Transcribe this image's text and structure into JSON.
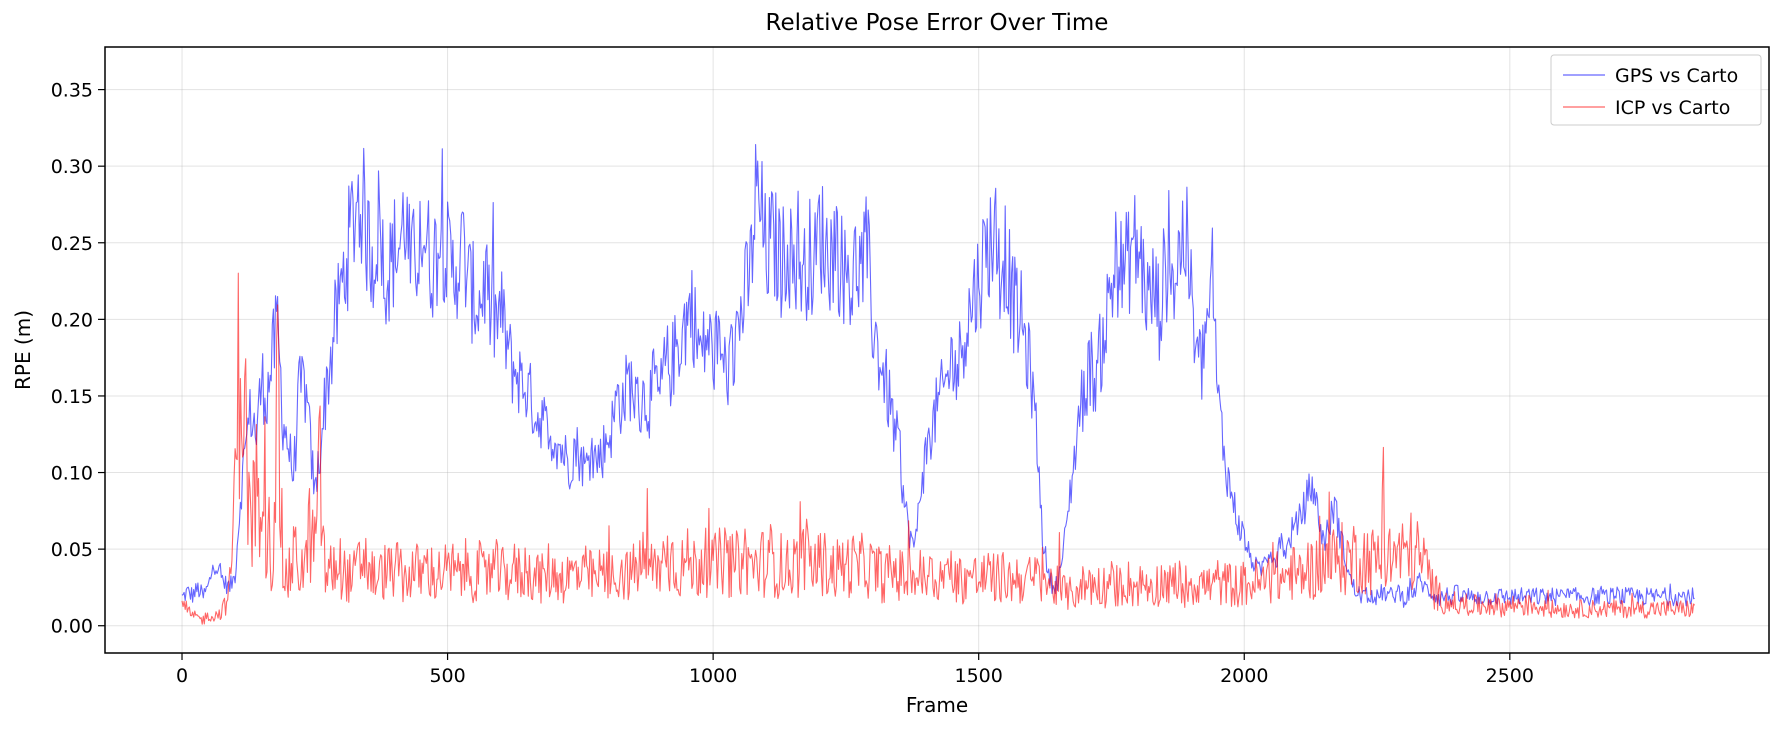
{
  "chart_data": {
    "type": "line",
    "title": "Relative Pose Error Over Time",
    "xlabel": "Frame",
    "ylabel": "RPE (m)",
    "xlim": [
      -145,
      2988
    ],
    "ylim": [
      -0.0178,
      0.3778
    ],
    "x_ticks": [
      0,
      500,
      1000,
      1500,
      2000,
      2500
    ],
    "y_ticks": [
      0.0,
      0.05,
      0.1,
      0.15,
      0.2,
      0.25,
      0.3,
      0.35
    ],
    "x_tick_labels": [
      "0",
      "500",
      "1000",
      "1500",
      "2000",
      "2500"
    ],
    "y_tick_labels": [
      "0.00",
      "0.05",
      "0.10",
      "0.15",
      "0.20",
      "0.25",
      "0.30",
      "0.35"
    ],
    "grid": true,
    "legend_position": "top-right",
    "frames": 2850,
    "series": [
      {
        "name": "GPS vs Carto",
        "color": "#0000ff",
        "opacity": 0.6,
        "x_step": 10,
        "values": [
          0.018,
          0.022,
          0.02,
          0.024,
          0.019,
          0.026,
          0.041,
          0.035,
          0.028,
          0.025,
          0.033,
          0.083,
          0.12,
          0.14,
          0.125,
          0.16,
          0.15,
          0.175,
          0.195,
          0.135,
          0.118,
          0.098,
          0.15,
          0.16,
          0.125,
          0.085,
          0.115,
          0.15,
          0.175,
          0.2,
          0.22,
          0.24,
          0.262,
          0.28,
          0.275,
          0.25,
          0.24,
          0.262,
          0.235,
          0.23,
          0.245,
          0.248,
          0.27,
          0.232,
          0.24,
          0.26,
          0.25,
          0.235,
          0.245,
          0.255,
          0.24,
          0.23,
          0.238,
          0.245,
          0.222,
          0.215,
          0.21,
          0.225,
          0.205,
          0.198,
          0.205,
          0.188,
          0.17,
          0.165,
          0.158,
          0.155,
          0.145,
          0.135,
          0.138,
          0.12,
          0.125,
          0.118,
          0.112,
          0.105,
          0.118,
          0.11,
          0.102,
          0.115,
          0.108,
          0.112,
          0.122,
          0.13,
          0.15,
          0.145,
          0.16,
          0.155,
          0.14,
          0.15,
          0.145,
          0.16,
          0.148,
          0.172,
          0.168,
          0.18,
          0.19,
          0.2,
          0.21,
          0.185,
          0.178,
          0.19,
          0.175,
          0.182,
          0.17,
          0.165,
          0.185,
          0.2,
          0.215,
          0.23,
          0.28,
          0.27,
          0.24,
          0.25,
          0.245,
          0.235,
          0.255,
          0.23,
          0.25,
          0.225,
          0.245,
          0.23,
          0.26,
          0.248,
          0.24,
          0.255,
          0.235,
          0.23,
          0.222,
          0.238,
          0.232,
          0.245,
          0.2,
          0.18,
          0.165,
          0.15,
          0.13,
          0.115,
          0.08,
          0.06,
          0.05,
          0.09,
          0.11,
          0.125,
          0.14,
          0.15,
          0.16,
          0.175,
          0.165,
          0.19,
          0.2,
          0.215,
          0.225,
          0.24,
          0.25,
          0.26,
          0.235,
          0.245,
          0.22,
          0.205,
          0.2,
          0.18,
          0.16,
          0.12,
          0.06,
          0.035,
          0.025,
          0.03,
          0.05,
          0.08,
          0.11,
          0.14,
          0.155,
          0.17,
          0.16,
          0.18,
          0.2,
          0.22,
          0.24,
          0.23,
          0.235,
          0.25,
          0.245,
          0.23,
          0.21,
          0.22,
          0.205,
          0.23,
          0.24,
          0.225,
          0.25,
          0.255,
          0.215,
          0.175,
          0.17,
          0.2,
          0.22,
          0.15,
          0.12,
          0.095,
          0.08,
          0.065,
          0.058,
          0.045,
          0.04,
          0.035,
          0.045,
          0.05,
          0.04,
          0.055,
          0.048,
          0.062,
          0.065,
          0.075,
          0.085,
          0.092,
          0.07,
          0.055,
          0.065,
          0.08,
          0.06,
          0.045,
          0.03,
          0.022,
          0.02,
          0.019,
          0.021,
          0.018,
          0.022,
          0.02,
          0.019,
          0.023,
          0.018,
          0.021,
          0.022,
          0.03,
          0.025,
          0.022,
          0.02,
          0.018,
          0.02,
          0.019,
          0.021,
          0.018,
          0.02,
          0.018,
          0.019
        ]
      },
      {
        "name": "ICP vs Carto",
        "color": "#ff0000",
        "opacity": 0.6,
        "x_step": 10,
        "values": [
          0.012,
          0.01,
          0.006,
          0.005,
          0.004,
          0.007,
          0.006,
          0.008,
          0.012,
          0.025,
          0.09,
          0.2,
          0.12,
          0.06,
          0.095,
          0.045,
          0.07,
          0.04,
          0.15,
          0.035,
          0.03,
          0.045,
          0.04,
          0.035,
          0.06,
          0.05,
          0.1,
          0.03,
          0.035,
          0.04,
          0.038,
          0.032,
          0.03,
          0.036,
          0.045,
          0.04,
          0.032,
          0.03,
          0.036,
          0.034,
          0.04,
          0.032,
          0.03,
          0.035,
          0.036,
          0.033,
          0.038,
          0.035,
          0.031,
          0.037,
          0.034,
          0.036,
          0.032,
          0.038,
          0.035,
          0.033,
          0.036,
          0.031,
          0.035,
          0.037,
          0.034,
          0.032,
          0.036,
          0.035,
          0.033,
          0.038,
          0.034,
          0.032,
          0.03,
          0.036,
          0.032,
          0.034,
          0.03,
          0.033,
          0.035,
          0.031,
          0.034,
          0.032,
          0.03,
          0.035,
          0.033,
          0.031,
          0.034,
          0.036,
          0.032,
          0.035,
          0.04,
          0.042,
          0.038,
          0.036,
          0.04,
          0.042,
          0.045,
          0.04,
          0.038,
          0.042,
          0.04,
          0.037,
          0.043,
          0.04,
          0.038,
          0.041,
          0.044,
          0.04,
          0.039,
          0.042,
          0.045,
          0.04,
          0.038,
          0.042,
          0.04,
          0.045,
          0.038,
          0.04,
          0.037,
          0.041,
          0.039,
          0.043,
          0.04,
          0.038,
          0.042,
          0.04,
          0.039,
          0.036,
          0.04,
          0.038,
          0.041,
          0.037,
          0.039,
          0.04,
          0.036,
          0.035,
          0.032,
          0.034,
          0.036,
          0.033,
          0.032,
          0.034,
          0.03,
          0.033,
          0.031,
          0.032,
          0.03,
          0.033,
          0.032,
          0.034,
          0.031,
          0.03,
          0.033,
          0.032,
          0.03,
          0.031,
          0.033,
          0.03,
          0.032,
          0.031,
          0.029,
          0.032,
          0.03,
          0.031,
          0.029,
          0.032,
          0.03,
          0.028,
          0.026,
          0.025,
          0.022,
          0.02,
          0.023,
          0.025,
          0.027,
          0.028,
          0.026,
          0.027,
          0.025,
          0.028,
          0.026,
          0.027,
          0.029,
          0.025,
          0.026,
          0.028,
          0.027,
          0.026,
          0.028,
          0.029,
          0.026,
          0.027,
          0.028,
          0.026,
          0.029,
          0.027,
          0.028,
          0.026,
          0.027,
          0.029,
          0.026,
          0.028,
          0.027,
          0.025,
          0.028,
          0.026,
          0.029,
          0.027,
          0.028,
          0.03,
          0.032,
          0.03,
          0.033,
          0.035,
          0.032,
          0.034,
          0.038,
          0.036,
          0.04,
          0.042,
          0.04,
          0.043,
          0.045,
          0.042,
          0.044,
          0.046,
          0.043,
          0.045,
          0.042,
          0.044,
          0.046,
          0.043,
          0.045,
          0.048,
          0.046,
          0.05,
          0.047,
          0.045,
          0.04,
          0.03,
          0.022,
          0.018,
          0.016,
          0.015,
          0.014,
          0.013,
          0.015,
          0.014,
          0.012,
          0.013,
          0.015,
          0.014,
          0.013,
          0.012,
          0.014,
          0.013,
          0.015,
          0.012,
          0.014,
          0.013,
          0.012,
          0.011
        ]
      }
    ]
  }
}
